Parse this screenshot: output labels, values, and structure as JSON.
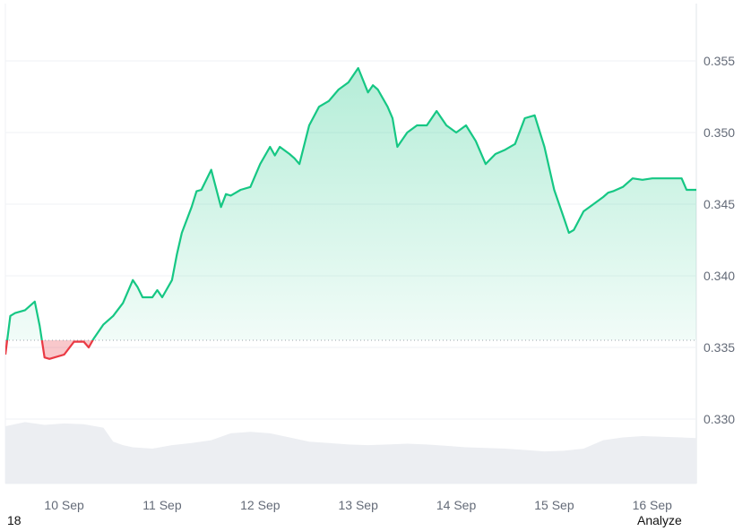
{
  "chart_data": {
    "type": "area",
    "baseline": 0.3355,
    "ylim": [
      0.3255,
      0.359
    ],
    "y_ticks": [
      "0.355",
      "0.350",
      "0.345",
      "0.340",
      "0.335",
      "0.330"
    ],
    "y_tick_values": [
      0.355,
      0.35,
      0.345,
      0.34,
      0.335,
      0.33
    ],
    "x_ticks": [
      "10 Sep",
      "11 Sep",
      "12 Sep",
      "13 Sep",
      "14 Sep",
      "15 Sep",
      "16 Sep"
    ],
    "x_tick_positions": [
      0.6,
      1.6,
      2.6,
      3.6,
      4.6,
      5.6,
      6.6
    ],
    "xlim": [
      0.0,
      7.05
    ],
    "series": [
      {
        "x": [
          0.0,
          0.05,
          0.1,
          0.2,
          0.3,
          0.35,
          0.4,
          0.45,
          0.5,
          0.6,
          0.7,
          0.8,
          0.85,
          0.9,
          0.95,
          1.0,
          1.1,
          1.2,
          1.3,
          1.35,
          1.4,
          1.5,
          1.55,
          1.6,
          1.7,
          1.75,
          1.8,
          1.9,
          1.95,
          2.0,
          2.1,
          2.2,
          2.25,
          2.3,
          2.4,
          2.5,
          2.6,
          2.7,
          2.75,
          2.8,
          2.9,
          2.95,
          3.0,
          3.1,
          3.2,
          3.3,
          3.4,
          3.5,
          3.6,
          3.7,
          3.75,
          3.8,
          3.9,
          3.95,
          4.0,
          4.1,
          4.2,
          4.3,
          4.4,
          4.5,
          4.6,
          4.7,
          4.8,
          4.9,
          5.0,
          5.1,
          5.2,
          5.3,
          5.4,
          5.5,
          5.6,
          5.7,
          5.75,
          5.8,
          5.9,
          6.0,
          6.1,
          6.15,
          6.2,
          6.3,
          6.4,
          6.5,
          6.6,
          6.7,
          6.8,
          6.9,
          6.95,
          7.0,
          7.05
        ],
        "y": [
          0.3345,
          0.3372,
          0.3374,
          0.3376,
          0.3382,
          0.3365,
          0.3343,
          0.3342,
          0.3343,
          0.3345,
          0.3354,
          0.3354,
          0.335,
          0.3356,
          0.3361,
          0.3366,
          0.3372,
          0.3381,
          0.3397,
          0.3392,
          0.3385,
          0.3385,
          0.339,
          0.3385,
          0.3397,
          0.3415,
          0.343,
          0.3448,
          0.3459,
          0.346,
          0.3474,
          0.3448,
          0.3457,
          0.3456,
          0.346,
          0.3462,
          0.3478,
          0.349,
          0.3484,
          0.349,
          0.3485,
          0.3482,
          0.3478,
          0.3505,
          0.3518,
          0.3522,
          0.353,
          0.3535,
          0.3545,
          0.3528,
          0.3533,
          0.353,
          0.3518,
          0.351,
          0.349,
          0.35,
          0.3505,
          0.3505,
          0.3515,
          0.3505,
          0.35,
          0.3505,
          0.3494,
          0.3478,
          0.3485,
          0.3488,
          0.3492,
          0.351,
          0.3512,
          0.349,
          0.346,
          0.344,
          0.343,
          0.3432,
          0.3445,
          0.345,
          0.3455,
          0.3458,
          0.3459,
          0.3462,
          0.3468,
          0.3467,
          0.3468,
          0.3468,
          0.3468,
          0.3468,
          0.346,
          0.346,
          0.346
        ]
      }
    ],
    "volume": {
      "x": [
        0.0,
        0.2,
        0.4,
        0.6,
        0.8,
        1.0,
        1.1,
        1.2,
        1.3,
        1.5,
        1.7,
        1.9,
        2.1,
        2.3,
        2.5,
        2.7,
        2.9,
        3.1,
        3.3,
        3.5,
        3.7,
        3.9,
        4.1,
        4.3,
        4.5,
        4.7,
        4.9,
        5.1,
        5.3,
        5.5,
        5.7,
        5.9,
        6.1,
        6.3,
        6.5,
        6.7,
        6.9,
        7.05
      ],
      "values": [
        0.82,
        0.88,
        0.84,
        0.86,
        0.85,
        0.8,
        0.6,
        0.55,
        0.52,
        0.5,
        0.55,
        0.58,
        0.62,
        0.72,
        0.74,
        0.72,
        0.66,
        0.6,
        0.58,
        0.56,
        0.55,
        0.56,
        0.57,
        0.56,
        0.54,
        0.52,
        0.51,
        0.5,
        0.48,
        0.46,
        0.47,
        0.5,
        0.62,
        0.66,
        0.68,
        0.67,
        0.66,
        0.65
      ]
    },
    "colors": {
      "up_line": "#16c784",
      "down_line": "#ea3943",
      "up_fill": "#16c784",
      "down_fill": "#ea3943",
      "volume": "#eceef2",
      "grid": "#eff2f5",
      "baseline_dots": "#9aa0aa",
      "tick_text": "#646b78"
    }
  },
  "footer": {
    "left_text": "18",
    "right_link": "Analyze"
  }
}
